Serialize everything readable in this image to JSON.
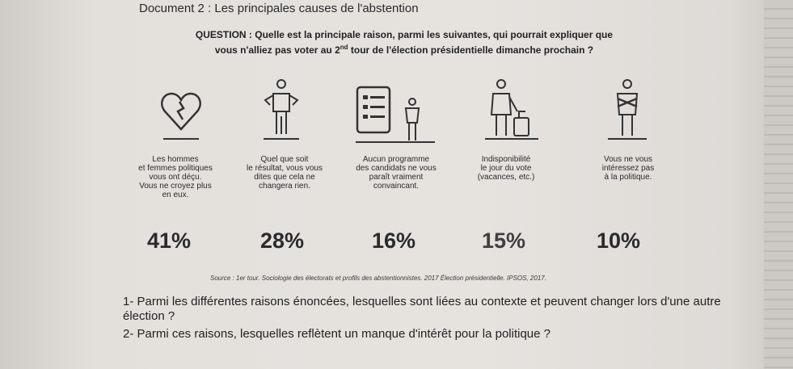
{
  "document_title": "Document 2 : Les principales causes de l'abstention",
  "question": {
    "prefix": "QUESTION : ",
    "line1": "Quelle est la principale raison, parmi les suivantes, qui pourrait expliquer que",
    "line2_start": "vous n'alliez pas voter au 2",
    "line2_sup": "nd",
    "line2_end": " tour de l'élection présidentielle dimanche prochain ?"
  },
  "reasons": [
    {
      "icon": "broken-heart-icon",
      "lines": [
        "Les hommes",
        "et femmes politiques",
        "vous ont déçu.",
        "Vous ne croyez plus",
        "en eux."
      ],
      "percent": "41%"
    },
    {
      "icon": "shrugging-person-icon",
      "lines": [
        "Quel que soit",
        "le résultat, vous vous",
        "dites que cela ne",
        "changera rien."
      ],
      "percent": "28%"
    },
    {
      "icon": "person-reading-board-icon",
      "lines": [
        "Aucun programme",
        "des candidats ne vous",
        "paraît vraiment",
        "convaincant."
      ],
      "percent": "16%"
    },
    {
      "icon": "traveler-suitcase-icon",
      "lines": [
        "Indisponibilité",
        "le jour du vote",
        "(vacances, etc.)"
      ],
      "percent": "15%"
    },
    {
      "icon": "arms-crossed-person-icon",
      "lines": [
        "Vous ne vous",
        "intéressez pas",
        "à la politique."
      ],
      "percent": "10%"
    }
  ],
  "source": "Source : 1er tour. Sociologie des électorats et profils des abstentionnistes. 2017 Élection présidentielle. IPSOS, 2017.",
  "questions": [
    "1- Parmi les différentes raisons énoncées, lesquelles sont liées au contexte et peuvent changer lors d'une autre élection ?",
    "2- Parmi ces raisons, lesquelles reflètent un manque d'intérêt pour la politique ?"
  ],
  "colors": {
    "ink": "#1e1e1e",
    "paper": "#e4e1dd"
  }
}
